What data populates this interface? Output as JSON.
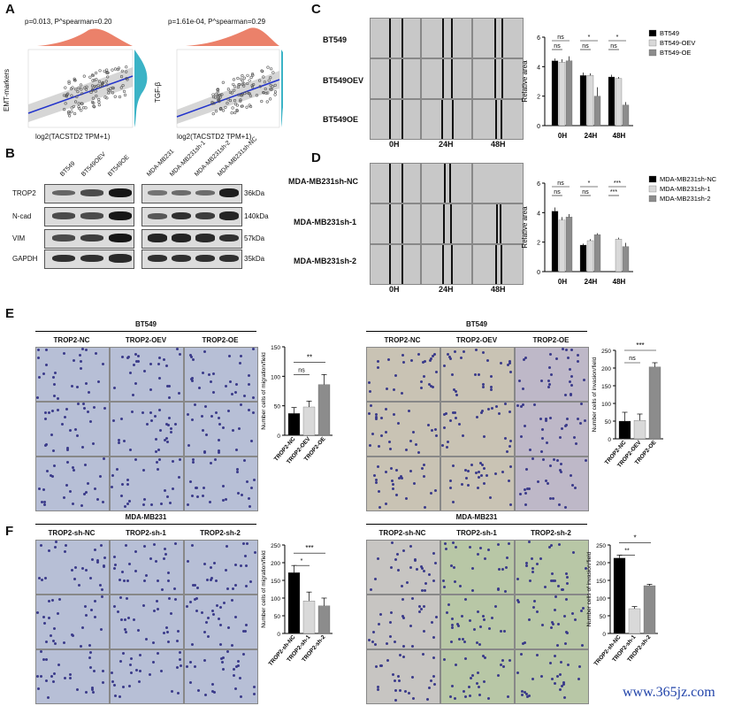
{
  "panel_labels": {
    "A": "A",
    "B": "B",
    "C": "C",
    "D": "D",
    "E": "E",
    "F": "F"
  },
  "panelA": {
    "left": {
      "stat": "p=0.013, P^spearman=0.20",
      "ylabel": "EMT-markers",
      "xlabel": "log2(TACSTD2 TPM+1)"
    },
    "right": {
      "stat": "p=1.61e-04, P^spearman=0.29",
      "ylabel": "TGF-β",
      "xlabel": "log2(TACSTD2 TPM+1)"
    }
  },
  "panelB": {
    "left_lanes": [
      "BT549",
      "BT549OEV",
      "BT549OE"
    ],
    "right_lanes": [
      "MDA-MB231",
      "MDA-MB231sh-1",
      "MDA-MB231sh-2",
      "MDA-MB231sh-NC"
    ],
    "rows": [
      {
        "name": "TROP2",
        "kda": "36kDa"
      },
      {
        "name": "N-cad",
        "kda": "140kDa"
      },
      {
        "name": "VIM",
        "kda": "57kDa"
      },
      {
        "name": "GAPDH",
        "kda": "35kDa"
      }
    ]
  },
  "panelC": {
    "rows": [
      "BT549",
      "BT549OEV",
      "BT549OE"
    ],
    "cols": [
      "0H",
      "24H",
      "48H"
    ]
  },
  "panelD": {
    "rows": [
      "MDA-MB231sh-NC",
      "MDA-MB231sh-1",
      "MDA-MB231sh-2"
    ],
    "cols": [
      "0H",
      "24H",
      "48H"
    ]
  },
  "panelE": {
    "title_left": "BT549",
    "title_right": "BT549",
    "cols": [
      "TROP2-NC",
      "TROP2-OEV",
      "TROP2-OE"
    ]
  },
  "panelF": {
    "title_left": "MDA-MB231",
    "title_right": "MDA-MB231",
    "cols": [
      "TROP2-sh-NC",
      "TROP2-sh-1",
      "TROP2-sh-2"
    ]
  },
  "watermark": "www.365jz.com",
  "colors": {
    "black": "#000000",
    "light": "#d9d9d9",
    "mid": "#8c8c8c",
    "teal": "#3bb3c6",
    "salmon": "#e9735a",
    "line": "#2233cc"
  },
  "chart_data": [
    {
      "id": "C",
      "type": "bar",
      "categories": [
        "0H",
        "24H",
        "48H"
      ],
      "ylabel": "Relative area",
      "ylim": [
        0,
        6
      ],
      "yticks": [
        0,
        2,
        4,
        6
      ],
      "series": [
        {
          "name": "BT549",
          "values": [
            4.4,
            3.4,
            3.3
          ]
        },
        {
          "name": "BT549-OEV",
          "values": [
            4.3,
            3.4,
            3.2
          ]
        },
        {
          "name": "BT549-OE",
          "values": [
            4.4,
            2.0,
            1.4
          ]
        }
      ],
      "errors": [
        [
          0.15,
          0.2,
          0.15
        ],
        [
          0.2,
          0.15,
          0.1
        ],
        [
          0.3,
          0.6,
          0.2
        ]
      ],
      "annotations": [
        {
          "text": "ns",
          "group": 0
        },
        {
          "text": "ns",
          "group": 0
        },
        {
          "text": "*",
          "group": 1
        },
        {
          "text": "ns",
          "group": 1
        },
        {
          "text": "*",
          "group": 2
        },
        {
          "text": "ns",
          "group": 2
        }
      ]
    },
    {
      "id": "D",
      "type": "bar",
      "categories": [
        "0H",
        "24H",
        "48H"
      ],
      "ylabel": "Relative area",
      "ylim": [
        0,
        6
      ],
      "yticks": [
        0,
        2,
        4,
        6
      ],
      "series": [
        {
          "name": "MDA-MB231sh-NC",
          "values": [
            4.1,
            1.8,
            0
          ]
        },
        {
          "name": "MDA-MB231sh-1",
          "values": [
            3.5,
            2.1,
            2.2
          ]
        },
        {
          "name": "MDA-MB231sh-2",
          "values": [
            3.7,
            2.5,
            1.7
          ]
        }
      ],
      "errors": [
        [
          0.25,
          0.1,
          0
        ],
        [
          0.2,
          0.1,
          0.1
        ],
        [
          0.2,
          0.1,
          0.25
        ]
      ],
      "annotations": [
        {
          "text": "ns",
          "group": 0
        },
        {
          "text": "ns",
          "group": 0
        },
        {
          "text": "*",
          "group": 1
        },
        {
          "text": "ns",
          "group": 1
        },
        {
          "text": "***",
          "group": 2
        },
        {
          "text": "***",
          "group": 2
        }
      ]
    },
    {
      "id": "E-left",
      "type": "bar",
      "categories": [
        "TROP2-NC",
        "TROP2-OEV",
        "TROP2-OE"
      ],
      "ylabel": "Number cells of migration/field",
      "ylim": [
        0,
        150
      ],
      "yticks": [
        0,
        50,
        100,
        150
      ],
      "values": [
        37,
        48,
        86
      ],
      "errors": [
        10,
        10,
        17
      ],
      "annotations": [
        "ns",
        "**"
      ]
    },
    {
      "id": "E-right",
      "type": "bar",
      "categories": [
        "TROP2-NC",
        "TROP2-OEV",
        "TROP2-OE"
      ],
      "ylabel": "Number cells of invasion/field",
      "ylim": [
        0,
        250
      ],
      "yticks": [
        0,
        50,
        100,
        150,
        200,
        250
      ],
      "values": [
        50,
        52,
        203
      ],
      "errors": [
        25,
        18,
        12
      ],
      "annotations": [
        "ns",
        "***"
      ]
    },
    {
      "id": "F-left",
      "type": "bar",
      "categories": [
        "TROP2-sh-NC",
        "TROP2-sh-1",
        "TROP2-sh-2"
      ],
      "ylabel": "Number cells of migration/field",
      "ylim": [
        0,
        250
      ],
      "yticks": [
        0,
        50,
        100,
        150,
        200,
        250
      ],
      "values": [
        172,
        92,
        78
      ],
      "errors": [
        20,
        25,
        22
      ],
      "annotations": [
        "*",
        "***"
      ]
    },
    {
      "id": "F-right",
      "type": "bar",
      "categories": [
        "TROP2-sh-NC",
        "TROP2-sh-1",
        "TROP2-sh-2"
      ],
      "ylabel": "Number cells of invasion/field",
      "ylim": [
        0,
        250
      ],
      "yticks": [
        0,
        50,
        100,
        150,
        200,
        250
      ],
      "values": [
        213,
        70,
        135
      ],
      "errors": [
        8,
        6,
        4
      ],
      "annotations": [
        "**",
        "*"
      ]
    }
  ]
}
